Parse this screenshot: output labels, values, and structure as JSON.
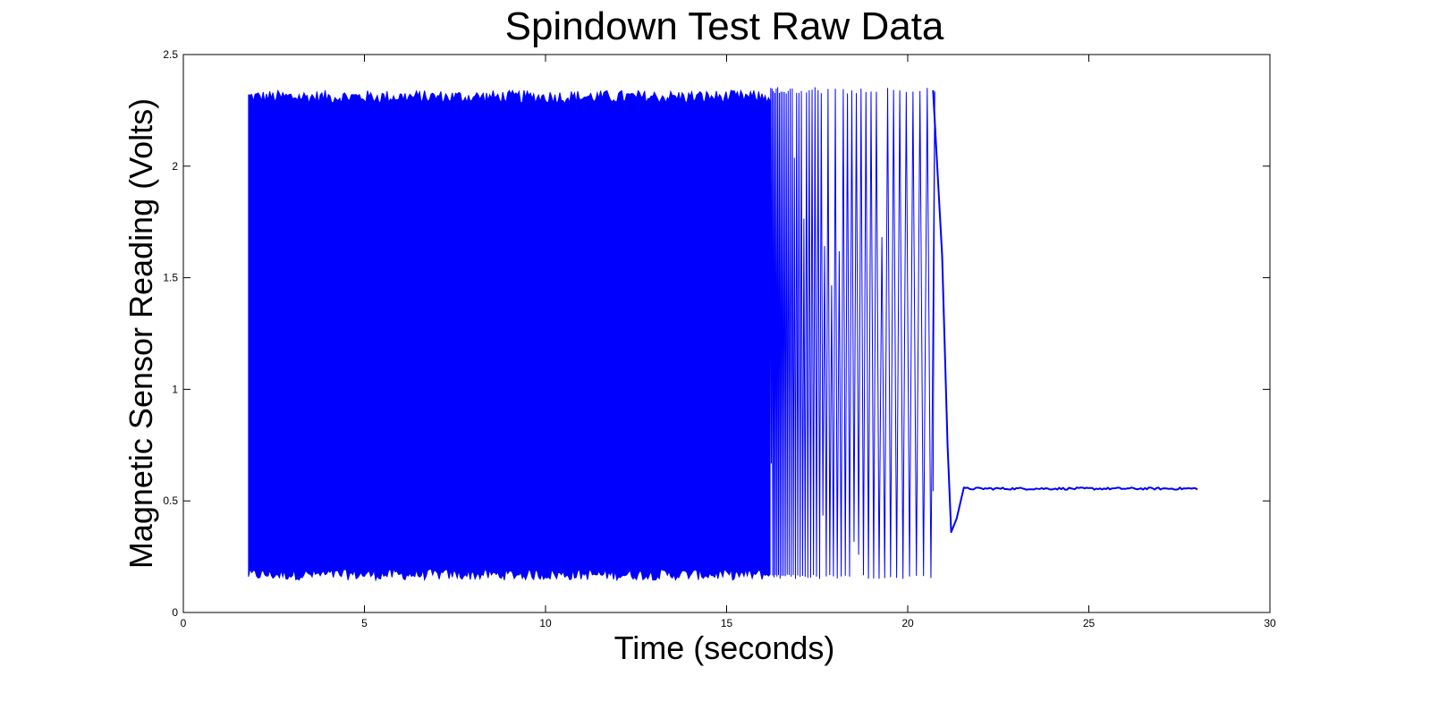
{
  "chart_data": {
    "type": "line",
    "title": "Spindown Test Raw Data",
    "xlabel": "Time (seconds)",
    "ylabel": "Magnetic Sensor Reading (Volts)",
    "xlim": [
      0,
      30
    ],
    "ylim": [
      0,
      2.5
    ],
    "xticks": [
      0,
      5,
      10,
      15,
      20,
      25,
      30
    ],
    "xtick_labels": [
      "0",
      "5",
      "10",
      "15",
      "20",
      "25",
      "30"
    ],
    "yticks": [
      0,
      0.5,
      1,
      1.5,
      2,
      2.5
    ],
    "ytick_labels": [
      "0",
      "0.5",
      "1",
      "1.5",
      "2",
      "2.5"
    ],
    "grid": false,
    "box": true,
    "series": [
      {
        "color": "#0000ff",
        "description_points": {
          "dense_region": {
            "x_start": 1.8,
            "x_end": 16.2,
            "y_high": 2.31,
            "y_low": 0.17
          },
          "slowing_region": {
            "x_start": 16.2,
            "x_end": 20.7,
            "y_high": 2.34,
            "y_low": 0.16
          },
          "decay": [
            {
              "x": 20.7,
              "y": 2.34
            },
            {
              "x": 20.95,
              "y": 1.6
            },
            {
              "x": 21.1,
              "y": 0.75
            },
            {
              "x": 21.2,
              "y": 0.36
            },
            {
              "x": 21.35,
              "y": 0.42
            },
            {
              "x": 21.55,
              "y": 0.56
            },
            {
              "x": 28.0,
              "y": 0.555
            }
          ]
        }
      }
    ]
  }
}
